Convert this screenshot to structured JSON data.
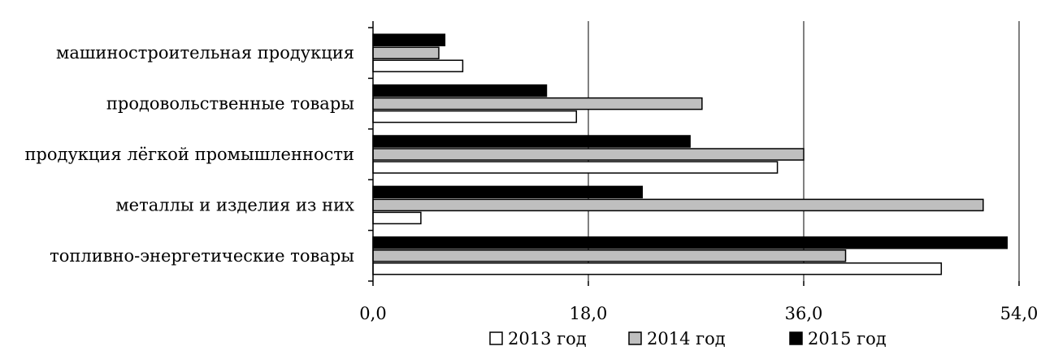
{
  "chart_data": {
    "type": "bar",
    "orientation": "horizontal",
    "categories": [
      "машиностроительная продукция",
      "продовольственные товары",
      "продукция лёгкой промышленности",
      "металлы и изделия из них",
      "топливно-энергетические товары"
    ],
    "series": [
      {
        "name": "2013 год",
        "color": "#ffffff",
        "values": [
          7.5,
          17.0,
          33.8,
          4.0,
          47.5
        ]
      },
      {
        "name": "2014 год",
        "color": "#bfbfbf",
        "values": [
          5.5,
          27.5,
          36.0,
          51.0,
          39.5
        ]
      },
      {
        "name": "2015 год",
        "color": "#000000",
        "values": [
          6.0,
          14.5,
          26.5,
          22.5,
          53.0
        ]
      }
    ],
    "xlim": [
      0,
      54
    ],
    "xticks": [
      "0,0",
      "18,0",
      "36,0",
      "54,0"
    ],
    "xtick_values": [
      0,
      18,
      36,
      54
    ],
    "grid": "vertical",
    "legend": "bottom"
  }
}
